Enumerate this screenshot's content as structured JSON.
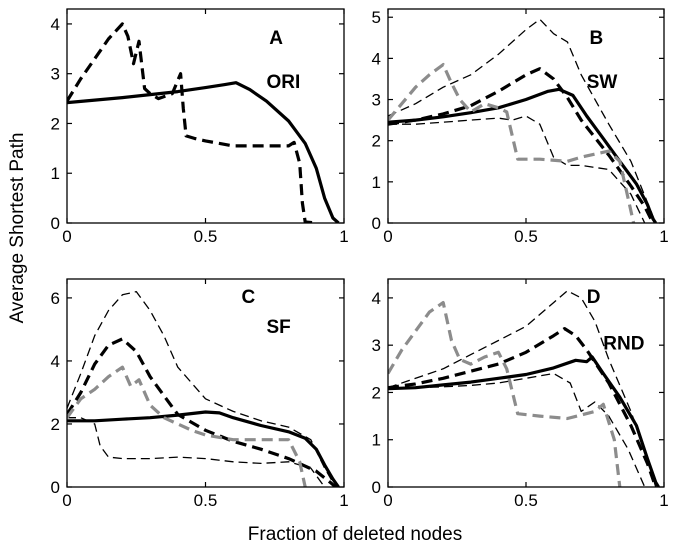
{
  "figure": {
    "xlabel": "Fraction of deleted nodes",
    "ylabel": "Average Shortest Path"
  },
  "colors": {
    "black": "#000000",
    "gray": "#8c8c8c"
  },
  "chart_data": [
    {
      "type": "line",
      "panel": "A",
      "annotation": "ORI",
      "xlim": [
        0,
        1
      ],
      "ylim": [
        0,
        4.3
      ],
      "xticks": [
        "0",
        "0.5",
        "1"
      ],
      "yticks": [
        "0",
        "1",
        "2",
        "3",
        "4"
      ],
      "grid": false,
      "series": [
        {
          "color": "black",
          "style": "solid",
          "width": 3.2,
          "x": [
            0,
            0.1,
            0.2,
            0.3,
            0.4,
            0.5,
            0.57,
            0.61,
            0.66,
            0.72,
            0.8,
            0.86,
            0.9,
            0.93,
            0.96,
            0.98
          ],
          "y": [
            2.42,
            2.47,
            2.52,
            2.58,
            2.64,
            2.72,
            2.78,
            2.82,
            2.68,
            2.45,
            2.05,
            1.6,
            1.1,
            0.5,
            0.1,
            0
          ]
        },
        {
          "color": "black",
          "style": "dash",
          "width": 3.2,
          "x": [
            0,
            0.05,
            0.1,
            0.15,
            0.2,
            0.22,
            0.24,
            0.26,
            0.28,
            0.3,
            0.33,
            0.38,
            0.41,
            0.42,
            0.43,
            0.46,
            0.5,
            0.6,
            0.7,
            0.8,
            0.82,
            0.84,
            0.85,
            0.86,
            0.9
          ],
          "y": [
            2.45,
            2.9,
            3.3,
            3.7,
            4.0,
            3.75,
            3.2,
            3.65,
            2.7,
            2.6,
            2.5,
            2.6,
            3.0,
            2.3,
            1.75,
            1.7,
            1.65,
            1.55,
            1.55,
            1.55,
            1.62,
            1.2,
            0.4,
            0.02,
            0
          ]
        }
      ]
    },
    {
      "type": "line",
      "panel": "B",
      "annotation": "SW",
      "xlim": [
        0,
        1
      ],
      "ylim": [
        0,
        5.2
      ],
      "xticks": [
        "0",
        "0.5",
        "1"
      ],
      "yticks": [
        "0",
        "1",
        "2",
        "3",
        "4",
        "5"
      ],
      "grid": false,
      "series": [
        {
          "color": "black",
          "style": "solid",
          "width": 3.2,
          "x": [
            0,
            0.1,
            0.2,
            0.3,
            0.4,
            0.5,
            0.58,
            0.62,
            0.67,
            0.72,
            0.78,
            0.84,
            0.9,
            0.94,
            0.96,
            0.97
          ],
          "y": [
            2.45,
            2.5,
            2.58,
            2.68,
            2.8,
            3.0,
            3.2,
            3.25,
            3.1,
            2.6,
            2.05,
            1.5,
            0.95,
            0.45,
            0.1,
            0
          ]
        },
        {
          "color": "black",
          "style": "dash",
          "width": 3.2,
          "x": [
            0,
            0.1,
            0.2,
            0.3,
            0.4,
            0.5,
            0.55,
            0.6,
            0.65,
            0.7,
            0.8,
            0.88,
            0.93,
            0.96
          ],
          "y": [
            2.4,
            2.5,
            2.65,
            2.85,
            3.2,
            3.6,
            3.75,
            3.5,
            3.05,
            2.5,
            1.65,
            0.9,
            0.4,
            0
          ]
        },
        {
          "color": "black",
          "style": "dash",
          "width": 1.3,
          "x": [
            0,
            0.1,
            0.2,
            0.3,
            0.4,
            0.5,
            0.55,
            0.6,
            0.65,
            0.7,
            0.8,
            0.88,
            0.94,
            0.97
          ],
          "y": [
            2.6,
            2.9,
            3.3,
            3.6,
            4.1,
            4.7,
            4.95,
            4.6,
            4.4,
            3.6,
            2.4,
            1.5,
            0.5,
            0
          ]
        },
        {
          "color": "black",
          "style": "dash",
          "width": 1.3,
          "x": [
            0,
            0.1,
            0.2,
            0.3,
            0.4,
            0.45,
            0.5,
            0.55,
            0.6,
            0.65,
            0.7,
            0.8,
            0.88,
            0.93
          ],
          "y": [
            2.4,
            2.4,
            2.45,
            2.5,
            2.55,
            2.5,
            2.6,
            2.4,
            1.6,
            1.4,
            1.4,
            1.3,
            0.7,
            0
          ]
        },
        {
          "color": "gray",
          "style": "dash",
          "width": 3.2,
          "x": [
            0,
            0.05,
            0.1,
            0.15,
            0.2,
            0.23,
            0.26,
            0.3,
            0.35,
            0.4,
            0.43,
            0.47,
            0.55,
            0.65,
            0.7,
            0.8,
            0.84,
            0.87,
            0.89
          ],
          "y": [
            2.5,
            2.9,
            3.3,
            3.6,
            3.85,
            3.4,
            3.0,
            2.7,
            2.9,
            2.8,
            2.7,
            1.55,
            1.55,
            1.5,
            1.6,
            1.75,
            1.5,
            0.6,
            0
          ]
        }
      ]
    },
    {
      "type": "line",
      "panel": "C",
      "annotation": "SF",
      "xlim": [
        0,
        1
      ],
      "ylim": [
        0,
        6.6
      ],
      "xticks": [
        "0",
        "0.5",
        "1"
      ],
      "yticks": [
        "0",
        "2",
        "4",
        "6"
      ],
      "grid": false,
      "series": [
        {
          "color": "black",
          "style": "solid",
          "width": 3.2,
          "x": [
            0,
            0.1,
            0.2,
            0.3,
            0.4,
            0.5,
            0.55,
            0.6,
            0.7,
            0.8,
            0.86,
            0.9,
            0.93,
            0.96,
            0.98
          ],
          "y": [
            2.1,
            2.1,
            2.15,
            2.2,
            2.28,
            2.38,
            2.35,
            2.2,
            1.95,
            1.75,
            1.55,
            1.2,
            0.7,
            0.25,
            0
          ]
        },
        {
          "color": "black",
          "style": "dash",
          "width": 3.2,
          "x": [
            0,
            0.05,
            0.1,
            0.15,
            0.2,
            0.25,
            0.3,
            0.35,
            0.4,
            0.5,
            0.6,
            0.7,
            0.8,
            0.9,
            0.95,
            0.97
          ],
          "y": [
            2.3,
            3.0,
            3.9,
            4.5,
            4.7,
            4.3,
            3.5,
            2.9,
            2.3,
            1.8,
            1.45,
            1.2,
            0.9,
            0.5,
            0.15,
            0
          ]
        },
        {
          "color": "black",
          "style": "dash",
          "width": 1.3,
          "x": [
            0,
            0.05,
            0.1,
            0.15,
            0.2,
            0.25,
            0.3,
            0.35,
            0.4,
            0.5,
            0.6,
            0.7,
            0.8,
            0.88,
            0.93,
            0.97
          ],
          "y": [
            2.5,
            3.6,
            4.8,
            5.6,
            6.1,
            6.2,
            5.6,
            4.8,
            3.8,
            2.8,
            2.4,
            2.1,
            1.9,
            1.5,
            0.6,
            0
          ]
        },
        {
          "color": "black",
          "style": "dash",
          "width": 1.3,
          "x": [
            0,
            0.05,
            0.1,
            0.12,
            0.15,
            0.2,
            0.3,
            0.4,
            0.5,
            0.6,
            0.7,
            0.8,
            0.88,
            0.93
          ],
          "y": [
            2.2,
            2.2,
            2.0,
            1.3,
            0.95,
            0.9,
            0.9,
            0.95,
            0.9,
            0.8,
            0.75,
            0.8,
            0.6,
            0
          ]
        },
        {
          "color": "gray",
          "style": "dash",
          "width": 3.2,
          "x": [
            0,
            0.05,
            0.1,
            0.15,
            0.2,
            0.23,
            0.26,
            0.3,
            0.35,
            0.4,
            0.45,
            0.5,
            0.6,
            0.7,
            0.8,
            0.84,
            0.86
          ],
          "y": [
            2.2,
            2.8,
            3.1,
            3.5,
            3.8,
            3.2,
            3.4,
            2.6,
            2.2,
            2.0,
            1.8,
            1.65,
            1.5,
            1.5,
            1.5,
            0.8,
            0
          ]
        }
      ]
    },
    {
      "type": "line",
      "panel": "D",
      "annotation": "RND",
      "xlim": [
        0,
        1
      ],
      "ylim": [
        0,
        4.4
      ],
      "xticks": [
        "0",
        "0.5",
        "1"
      ],
      "yticks": [
        "0",
        "1",
        "2",
        "3",
        "4"
      ],
      "grid": false,
      "series": [
        {
          "color": "black",
          "style": "solid",
          "width": 3.2,
          "x": [
            0,
            0.1,
            0.2,
            0.3,
            0.4,
            0.5,
            0.6,
            0.68,
            0.72,
            0.74,
            0.78,
            0.84,
            0.9,
            0.94,
            0.97,
            0.98
          ],
          "y": [
            2.08,
            2.1,
            2.16,
            2.22,
            2.3,
            2.38,
            2.52,
            2.68,
            2.65,
            2.75,
            2.4,
            1.9,
            1.3,
            0.6,
            0.1,
            0
          ]
        },
        {
          "color": "black",
          "style": "dash",
          "width": 3.2,
          "x": [
            0,
            0.1,
            0.2,
            0.3,
            0.4,
            0.5,
            0.6,
            0.64,
            0.68,
            0.72,
            0.8,
            0.88,
            0.94,
            0.97
          ],
          "y": [
            2.1,
            2.18,
            2.3,
            2.45,
            2.6,
            2.85,
            3.2,
            3.35,
            3.2,
            2.9,
            2.2,
            1.3,
            0.5,
            0
          ]
        },
        {
          "color": "black",
          "style": "dash",
          "width": 1.3,
          "x": [
            0,
            0.1,
            0.2,
            0.3,
            0.4,
            0.5,
            0.6,
            0.65,
            0.7,
            0.75,
            0.8,
            0.88,
            0.94,
            0.97
          ],
          "y": [
            2.1,
            2.3,
            2.5,
            2.8,
            3.1,
            3.4,
            3.9,
            4.15,
            4.0,
            3.5,
            2.7,
            1.6,
            0.6,
            0
          ]
        },
        {
          "color": "black",
          "style": "dash",
          "width": 1.3,
          "x": [
            0,
            0.1,
            0.2,
            0.3,
            0.4,
            0.5,
            0.55,
            0.6,
            0.66,
            0.7,
            0.75,
            0.8,
            0.87,
            0.93
          ],
          "y": [
            2.1,
            2.1,
            2.12,
            2.15,
            2.2,
            2.3,
            2.35,
            2.4,
            2.2,
            1.6,
            1.8,
            1.5,
            0.8,
            0
          ]
        },
        {
          "color": "gray",
          "style": "dash",
          "width": 3.2,
          "x": [
            0,
            0.05,
            0.1,
            0.15,
            0.2,
            0.23,
            0.26,
            0.3,
            0.35,
            0.4,
            0.43,
            0.47,
            0.55,
            0.65,
            0.75,
            0.78,
            0.82,
            0.84
          ],
          "y": [
            2.4,
            2.9,
            3.3,
            3.7,
            3.9,
            3.1,
            2.7,
            2.6,
            2.75,
            2.85,
            2.5,
            1.55,
            1.5,
            1.45,
            1.6,
            1.75,
            1.0,
            0
          ]
        }
      ]
    }
  ]
}
